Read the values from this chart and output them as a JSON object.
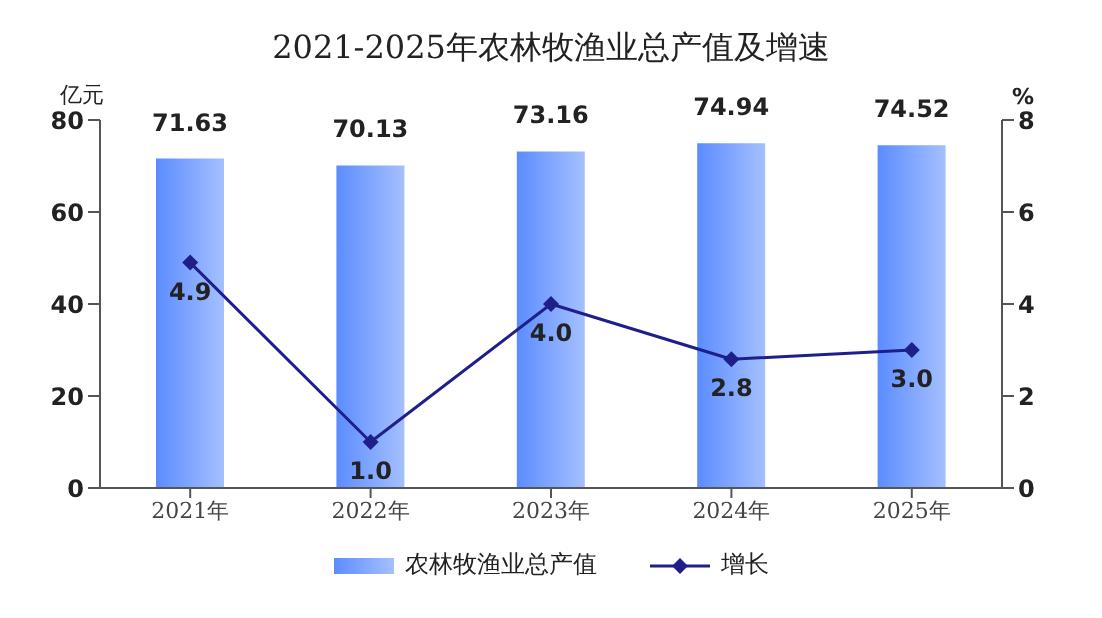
{
  "chart_data": {
    "type": "bar",
    "title": "2021-2025年农林牧渔业总产值及增速",
    "ylabel": "亿元",
    "y2label": "%",
    "categories": [
      "2021年",
      "2022年",
      "2023年",
      "2024年",
      "2025年"
    ],
    "series": [
      {
        "name": "农林牧渔业总产值",
        "color": "#5b8cff",
        "values": [
          71.63,
          70.13,
          73.16,
          74.94,
          74.52
        ],
        "value_labels": [
          "71.63",
          "70.13",
          "73.16",
          "74.94",
          "74.52"
        ]
      },
      {
        "name": "增长",
        "type": "line",
        "axis": "y2",
        "color": "#1f1f8c",
        "marker": "diamond",
        "values": [
          4.9,
          1.0,
          4.0,
          2.8,
          3.0
        ],
        "value_labels": [
          "4.9",
          "1.0",
          "4.0",
          "2.8",
          "3.0"
        ]
      }
    ],
    "ylim": [
      0,
      80
    ],
    "yticks": [
      0,
      20,
      40,
      60,
      80
    ],
    "y2lim": [
      0,
      8
    ],
    "y2ticks": [
      0,
      2,
      4,
      6,
      8
    ],
    "grid": false,
    "legend": "bottom"
  }
}
